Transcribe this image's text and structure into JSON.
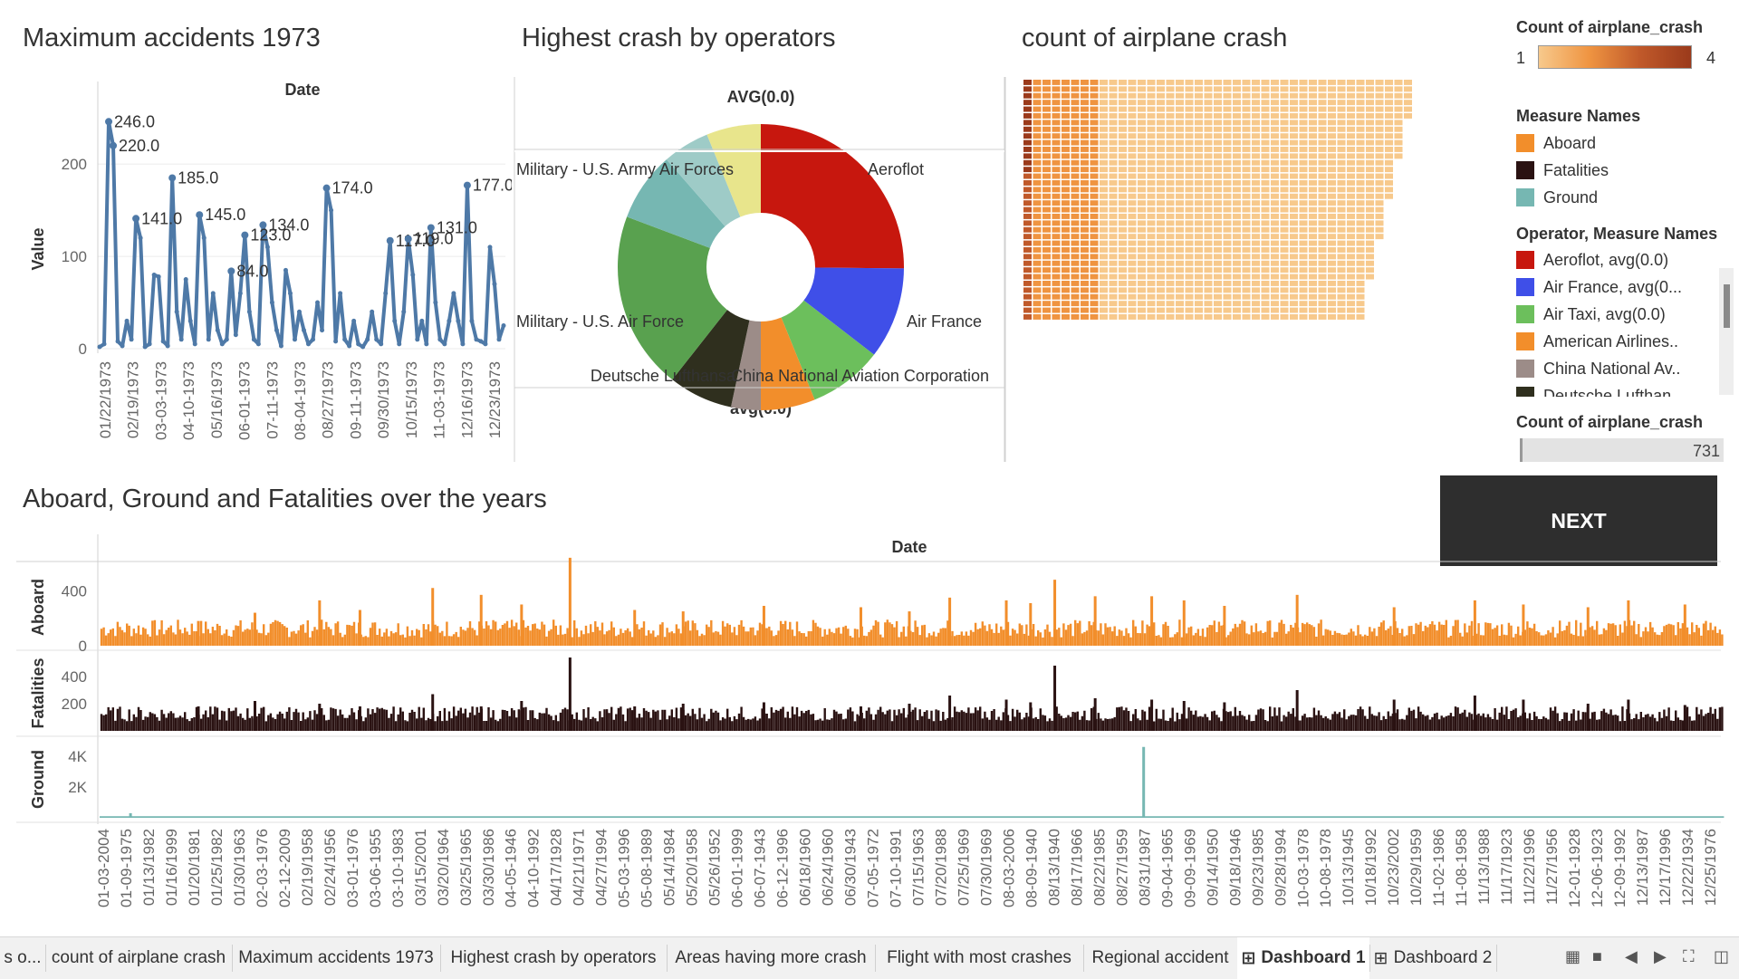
{
  "panels": {
    "line": {
      "title": "Maximum accidents 1973"
    },
    "pie": {
      "title": "Highest crash by operators"
    },
    "heat": {
      "title": "count of airplane crash"
    },
    "bottom": {
      "title": "Aboard, Ground and Fatalities over the years"
    }
  },
  "legends": {
    "count_title": "Count of airplane_crash",
    "count_min": "1",
    "count_max": "4",
    "count_colors": [
      "#f7c98c",
      "#ef9441",
      "#c0592a",
      "#9b3a1b"
    ],
    "measure_title": "Measure Names",
    "measures": [
      {
        "label": "Aboard",
        "color": "#f28e2b"
      },
      {
        "label": "Fatalities",
        "color": "#2a1212"
      },
      {
        "label": "Ground",
        "color": "#76b7b2"
      }
    ],
    "operator_title": "Operator, Measure Names",
    "operators": [
      {
        "label": "Aeroflot, avg(0.0)",
        "color": "#c7170e"
      },
      {
        "label": "Air France, avg(0...",
        "color": "#3f4fe8"
      },
      {
        "label": "Air Taxi, avg(0.0)",
        "color": "#6cbf5c"
      },
      {
        "label": "American Airlines..",
        "color": "#f28e2b"
      },
      {
        "label": "China National Av..",
        "color": "#9c8c88"
      },
      {
        "label": "Deutsche Lufthan",
        "color": "#2f2f1e"
      }
    ],
    "count_filter_title": "Count of airplane_crash",
    "count_filter_value": "731"
  },
  "next_button": "NEXT",
  "tabs": [
    "s o...",
    "count of airplane crash",
    "Maximum accidents 1973",
    "Highest crash by operators",
    "Areas having more crash",
    "Flight with most crashes",
    "Regional accident",
    "Dashboard 1",
    "Dashboard 2"
  ],
  "active_tab": "Dashboard 1",
  "chart_data": [
    {
      "type": "line",
      "title": "Maximum accidents 1973",
      "xlabel": "Date",
      "ylabel": "Value",
      "ylim": [
        0,
        260
      ],
      "yticks": [
        0,
        100,
        200
      ],
      "x_tick_labels": [
        "01/22/1973",
        "02/19/1973",
        "03-03-1973",
        "04-10-1973",
        "05/16/1973",
        "06-01-1973",
        "07-11-1973",
        "08-04-1973",
        "08/27/1973",
        "09-11-1973",
        "09/30/1973",
        "10/15/1973",
        "11-03-1973",
        "12/16/1973",
        "12/23/1973"
      ],
      "series": [
        {
          "name": "Value",
          "color": "#4e79a7",
          "values": [
            2,
            5,
            246,
            220,
            8,
            3,
            30,
            10,
            141,
            120,
            2,
            5,
            80,
            78,
            8,
            3,
            185,
            40,
            10,
            75,
            30,
            5,
            145,
            120,
            10,
            60,
            20,
            5,
            10,
            84,
            15,
            60,
            123,
            40,
            10,
            5,
            134,
            110,
            50,
            20,
            3,
            85,
            60,
            10,
            40,
            20,
            5,
            10,
            50,
            20,
            174,
            150,
            8,
            60,
            10,
            3,
            30,
            5,
            2,
            10,
            40,
            10,
            5,
            60,
            117,
            30,
            5,
            40,
            119,
            80,
            10,
            30,
            5,
            131,
            50,
            10,
            5,
            30,
            60,
            30,
            5,
            177,
            30,
            10,
            8,
            5,
            110,
            70,
            10,
            25
          ]
        }
      ],
      "data_labels": [
        {
          "index": 2,
          "text": "246.0"
        },
        {
          "index": 3,
          "text": "220.0"
        },
        {
          "index": 8,
          "text": "141.0"
        },
        {
          "index": 16,
          "text": "185.0"
        },
        {
          "index": 22,
          "text": "145.0"
        },
        {
          "index": 29,
          "text": "84.0"
        },
        {
          "index": 32,
          "text": "123.0"
        },
        {
          "index": 36,
          "text": "134.0"
        },
        {
          "index": 50,
          "text": "174.0"
        },
        {
          "index": 64,
          "text": "117.0"
        },
        {
          "index": 68,
          "text": "119.0"
        },
        {
          "index": 73,
          "text": "131.0"
        },
        {
          "index": 81,
          "text": "177.0"
        }
      ]
    },
    {
      "type": "pie",
      "title": "Highest crash by operators",
      "top_label": "AVG(0.0)",
      "top_value": "0",
      "bottom_label": "avg(0.0)",
      "bottom_value": "0",
      "slices": [
        {
          "label": "Aeroflot",
          "value": 90,
          "color": "#c7170e",
          "show_label": true
        },
        {
          "label": "Air France",
          "value": 37,
          "color": "#3f4fe8",
          "show_label": true
        },
        {
          "label": "Air Taxi",
          "value": 30,
          "color": "#6cbf5c",
          "show_label": false
        },
        {
          "label": "American Airlines",
          "value": 22,
          "color": "#f28e2b",
          "show_label": false
        },
        {
          "label": "China National Aviation Corporation",
          "value": 12,
          "color": "#9c8c88",
          "show_label": true
        },
        {
          "label": "Deutsche Lufthansa",
          "value": 26,
          "color": "#2f2f1e",
          "show_label": true
        },
        {
          "label": "Military - U.S. Air Force",
          "value": 72,
          "color": "#59a14f",
          "show_label": true
        },
        {
          "label": "Military - U.S. Army Air Forces",
          "value": 28,
          "color": "#76b7b2",
          "show_label": true
        },
        {
          "label": "",
          "value": 19,
          "color": "#9ecbc7",
          "show_label": false
        },
        {
          "label": "",
          "value": 22,
          "color": "#e8e58c",
          "show_label": false
        }
      ]
    },
    {
      "type": "heatmap",
      "title": "count of airplane crash",
      "legend": "Count of airplane_crash",
      "range": [
        1,
        4
      ]
    },
    {
      "type": "bar",
      "title": "Aboard, Ground and Fatalities over the years",
      "xlabel": "Date",
      "x_tick_labels": [
        "01-03-2004",
        "01-09-1975",
        "01/13/1982",
        "01/16/1999",
        "01/20/1981",
        "01/25/1982",
        "01/30/1963",
        "02-03-1976",
        "02-12-2009",
        "02/19/1958",
        "02/24/1956",
        "03-01-1976",
        "03-06-1955",
        "03-10-1983",
        "03/15/2001",
        "03/20/1964",
        "03/25/1965",
        "03/30/1986",
        "04-05-1946",
        "04-10-1992",
        "04/17/1928",
        "04/21/1971",
        "04/27/1994",
        "05-03-1996",
        "05-08-1989",
        "05/14/1984",
        "05/20/1958",
        "05/26/1952",
        "06-01-1999",
        "06-07-1943",
        "06-12-1996",
        "06/18/1960",
        "06/24/1960",
        "06/30/1943",
        "07-05-1972",
        "07-10-1991",
        "07/15/1963",
        "07/20/1988",
        "07/25/1969",
        "07/30/1969",
        "08-03-2006",
        "08-09-1940",
        "08/13/1940",
        "08/17/1966",
        "08/22/1985",
        "08/27/1959",
        "08/31/1987",
        "09-04-1965",
        "09-09-1969",
        "09/14/1950",
        "09/18/1946",
        "09/23/1985",
        "09/28/1994",
        "10-03-1978",
        "10-08-1978",
        "10/13/1945",
        "10/18/1992",
        "10/23/2002",
        "10/29/1959",
        "11-02-1986",
        "11-08-1958",
        "11/13/1988",
        "11/17/1923",
        "11/22/1996",
        "11/27/1956",
        "12-01-1928",
        "12-06-1923",
        "12-09-1992",
        "12/13/1987",
        "12/17/1996",
        "12/22/1934",
        "12/25/1976"
      ],
      "series": [
        {
          "name": "Aboard",
          "color": "#f28e2b",
          "ylim": [
            0,
            560
          ],
          "yticks": [
            0,
            400
          ],
          "peaks": [
            [
              0.06,
              180
            ],
            [
              0.095,
              240
            ],
            [
              0.135,
              330
            ],
            [
              0.16,
              260
            ],
            [
              0.205,
              420
            ],
            [
              0.235,
              370
            ],
            [
              0.26,
              300
            ],
            [
              0.29,
              640
            ],
            [
              0.33,
              260
            ],
            [
              0.36,
              250
            ],
            [
              0.41,
              290
            ],
            [
              0.47,
              280
            ],
            [
              0.5,
              250
            ],
            [
              0.525,
              350
            ],
            [
              0.56,
              330
            ],
            [
              0.575,
              310
            ],
            [
              0.59,
              480
            ],
            [
              0.615,
              360
            ],
            [
              0.65,
              360
            ],
            [
              0.67,
              330
            ],
            [
              0.695,
              290
            ],
            [
              0.74,
              370
            ],
            [
              0.8,
              280
            ],
            [
              0.85,
              330
            ],
            [
              0.88,
              300
            ],
            [
              0.92,
              280
            ],
            [
              0.945,
              330
            ],
            [
              0.98,
              300
            ]
          ]
        },
        {
          "name": "Fatalities",
          "color": "#2a1212",
          "ylim": [
            0,
            560
          ],
          "yticks": [
            200,
            400
          ],
          "peaks": [
            [
              0.06,
              180
            ],
            [
              0.095,
              220
            ],
            [
              0.135,
              200
            ],
            [
              0.16,
              180
            ],
            [
              0.205,
              270
            ],
            [
              0.235,
              180
            ],
            [
              0.26,
              220
            ],
            [
              0.29,
              540
            ],
            [
              0.33,
              180
            ],
            [
              0.36,
              200
            ],
            [
              0.41,
              210
            ],
            [
              0.47,
              180
            ],
            [
              0.5,
              200
            ],
            [
              0.525,
              260
            ],
            [
              0.56,
              230
            ],
            [
              0.575,
              210
            ],
            [
              0.59,
              480
            ],
            [
              0.615,
              240
            ],
            [
              0.65,
              230
            ],
            [
              0.67,
              220
            ],
            [
              0.695,
              210
            ],
            [
              0.74,
              300
            ],
            [
              0.8,
              230
            ],
            [
              0.85,
              260
            ],
            [
              0.88,
              230
            ],
            [
              0.92,
              200
            ],
            [
              0.945,
              230
            ],
            [
              0.98,
              190
            ]
          ]
        },
        {
          "name": "Ground",
          "color": "#76b7b2",
          "ylim": [
            0,
            5000
          ],
          "yticks": [
            "2K",
            "4K"
          ],
          "peaks": [
            [
              0.018,
              300
            ],
            [
              0.645,
              4600
            ]
          ]
        }
      ]
    }
  ]
}
